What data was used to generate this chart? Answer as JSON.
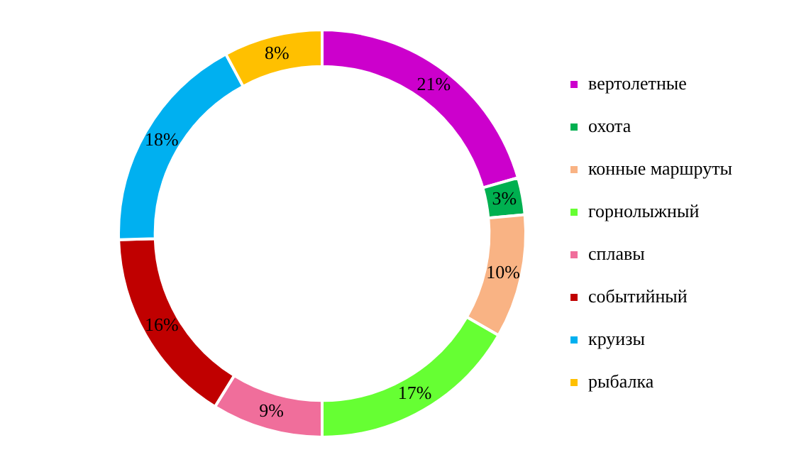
{
  "chart_data": {
    "type": "donut",
    "categories": [
      "вертолетные",
      "охота",
      "конные маршруты",
      "горнолыжный",
      "сплавы",
      "событийный",
      "круизы",
      "рыбалка"
    ],
    "values": [
      21,
      3,
      10,
      17,
      9,
      16,
      18,
      8
    ],
    "colors": [
      "#cc00cc",
      "#00b050",
      "#f9b384",
      "#66ff33",
      "#f06e9b",
      "#c00000",
      "#00b0f0",
      "#ffc000"
    ],
    "value_labels": [
      "21%",
      "3%",
      "10%",
      "17%",
      "9%",
      "16%",
      "18%",
      "8%"
    ],
    "legend": "right"
  }
}
